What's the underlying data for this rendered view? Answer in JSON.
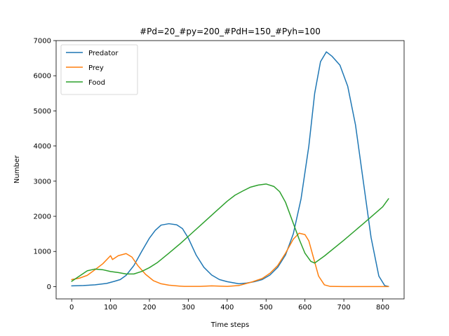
{
  "chart_data": {
    "type": "line",
    "title": "#Pd=20_#py=200_#PdH=150_#Pyh=100",
    "xlabel": "Time steps",
    "ylabel": "Number",
    "xlim": [
      -40,
      855
    ],
    "ylim": [
      -350,
      7000
    ],
    "xticks": [
      0,
      100,
      200,
      300,
      400,
      500,
      600,
      700,
      800
    ],
    "yticks": [
      0,
      1000,
      2000,
      3000,
      4000,
      5000,
      6000,
      7000
    ],
    "grid": false,
    "legend_position": "top-left",
    "series": [
      {
        "name": "Predator",
        "color": "#1f77b4",
        "points": [
          [
            0,
            20
          ],
          [
            30,
            30
          ],
          [
            60,
            50
          ],
          [
            90,
            90
          ],
          [
            110,
            150
          ],
          [
            125,
            200
          ],
          [
            140,
            320
          ],
          [
            160,
            600
          ],
          [
            180,
            1000
          ],
          [
            200,
            1380
          ],
          [
            215,
            1600
          ],
          [
            230,
            1750
          ],
          [
            250,
            1790
          ],
          [
            270,
            1760
          ],
          [
            285,
            1650
          ],
          [
            300,
            1380
          ],
          [
            320,
            900
          ],
          [
            340,
            550
          ],
          [
            360,
            330
          ],
          [
            380,
            200
          ],
          [
            400,
            140
          ],
          [
            430,
            80
          ],
          [
            450,
            100
          ],
          [
            470,
            140
          ],
          [
            490,
            200
          ],
          [
            510,
            330
          ],
          [
            530,
            550
          ],
          [
            550,
            900
          ],
          [
            570,
            1500
          ],
          [
            590,
            2500
          ],
          [
            610,
            4000
          ],
          [
            625,
            5500
          ],
          [
            640,
            6400
          ],
          [
            655,
            6680
          ],
          [
            670,
            6550
          ],
          [
            690,
            6300
          ],
          [
            710,
            5700
          ],
          [
            730,
            4600
          ],
          [
            750,
            3000
          ],
          [
            770,
            1400
          ],
          [
            790,
            300
          ],
          [
            805,
            30
          ],
          [
            815,
            5
          ]
        ]
      },
      {
        "name": "Prey",
        "color": "#ff7f0e",
        "points": [
          [
            0,
            200
          ],
          [
            20,
            240
          ],
          [
            40,
            320
          ],
          [
            60,
            480
          ],
          [
            80,
            650
          ],
          [
            100,
            880
          ],
          [
            105,
            770
          ],
          [
            120,
            880
          ],
          [
            140,
            940
          ],
          [
            155,
            840
          ],
          [
            170,
            600
          ],
          [
            190,
            350
          ],
          [
            210,
            170
          ],
          [
            230,
            80
          ],
          [
            250,
            40
          ],
          [
            270,
            20
          ],
          [
            290,
            5
          ],
          [
            330,
            5
          ],
          [
            360,
            20
          ],
          [
            400,
            5
          ],
          [
            430,
            30
          ],
          [
            460,
            120
          ],
          [
            490,
            230
          ],
          [
            510,
            380
          ],
          [
            530,
            600
          ],
          [
            550,
            950
          ],
          [
            570,
            1350
          ],
          [
            585,
            1520
          ],
          [
            600,
            1480
          ],
          [
            610,
            1300
          ],
          [
            620,
            900
          ],
          [
            635,
            300
          ],
          [
            650,
            50
          ],
          [
            665,
            5
          ],
          [
            700,
            0
          ],
          [
            800,
            0
          ],
          [
            815,
            0
          ]
        ]
      },
      {
        "name": "Food",
        "color": "#2ca02c",
        "points": [
          [
            0,
            150
          ],
          [
            20,
            300
          ],
          [
            40,
            450
          ],
          [
            60,
            500
          ],
          [
            80,
            480
          ],
          [
            100,
            430
          ],
          [
            120,
            400
          ],
          [
            140,
            360
          ],
          [
            160,
            360
          ],
          [
            180,
            430
          ],
          [
            200,
            540
          ],
          [
            220,
            680
          ],
          [
            250,
            950
          ],
          [
            280,
            1230
          ],
          [
            310,
            1530
          ],
          [
            340,
            1830
          ],
          [
            370,
            2130
          ],
          [
            400,
            2430
          ],
          [
            420,
            2600
          ],
          [
            440,
            2720
          ],
          [
            460,
            2830
          ],
          [
            480,
            2890
          ],
          [
            500,
            2920
          ],
          [
            520,
            2850
          ],
          [
            535,
            2700
          ],
          [
            550,
            2400
          ],
          [
            565,
            1950
          ],
          [
            585,
            1350
          ],
          [
            600,
            950
          ],
          [
            615,
            720
          ],
          [
            625,
            670
          ],
          [
            650,
            870
          ],
          [
            700,
            1320
          ],
          [
            750,
            1790
          ],
          [
            800,
            2270
          ],
          [
            815,
            2500
          ]
        ]
      }
    ]
  }
}
